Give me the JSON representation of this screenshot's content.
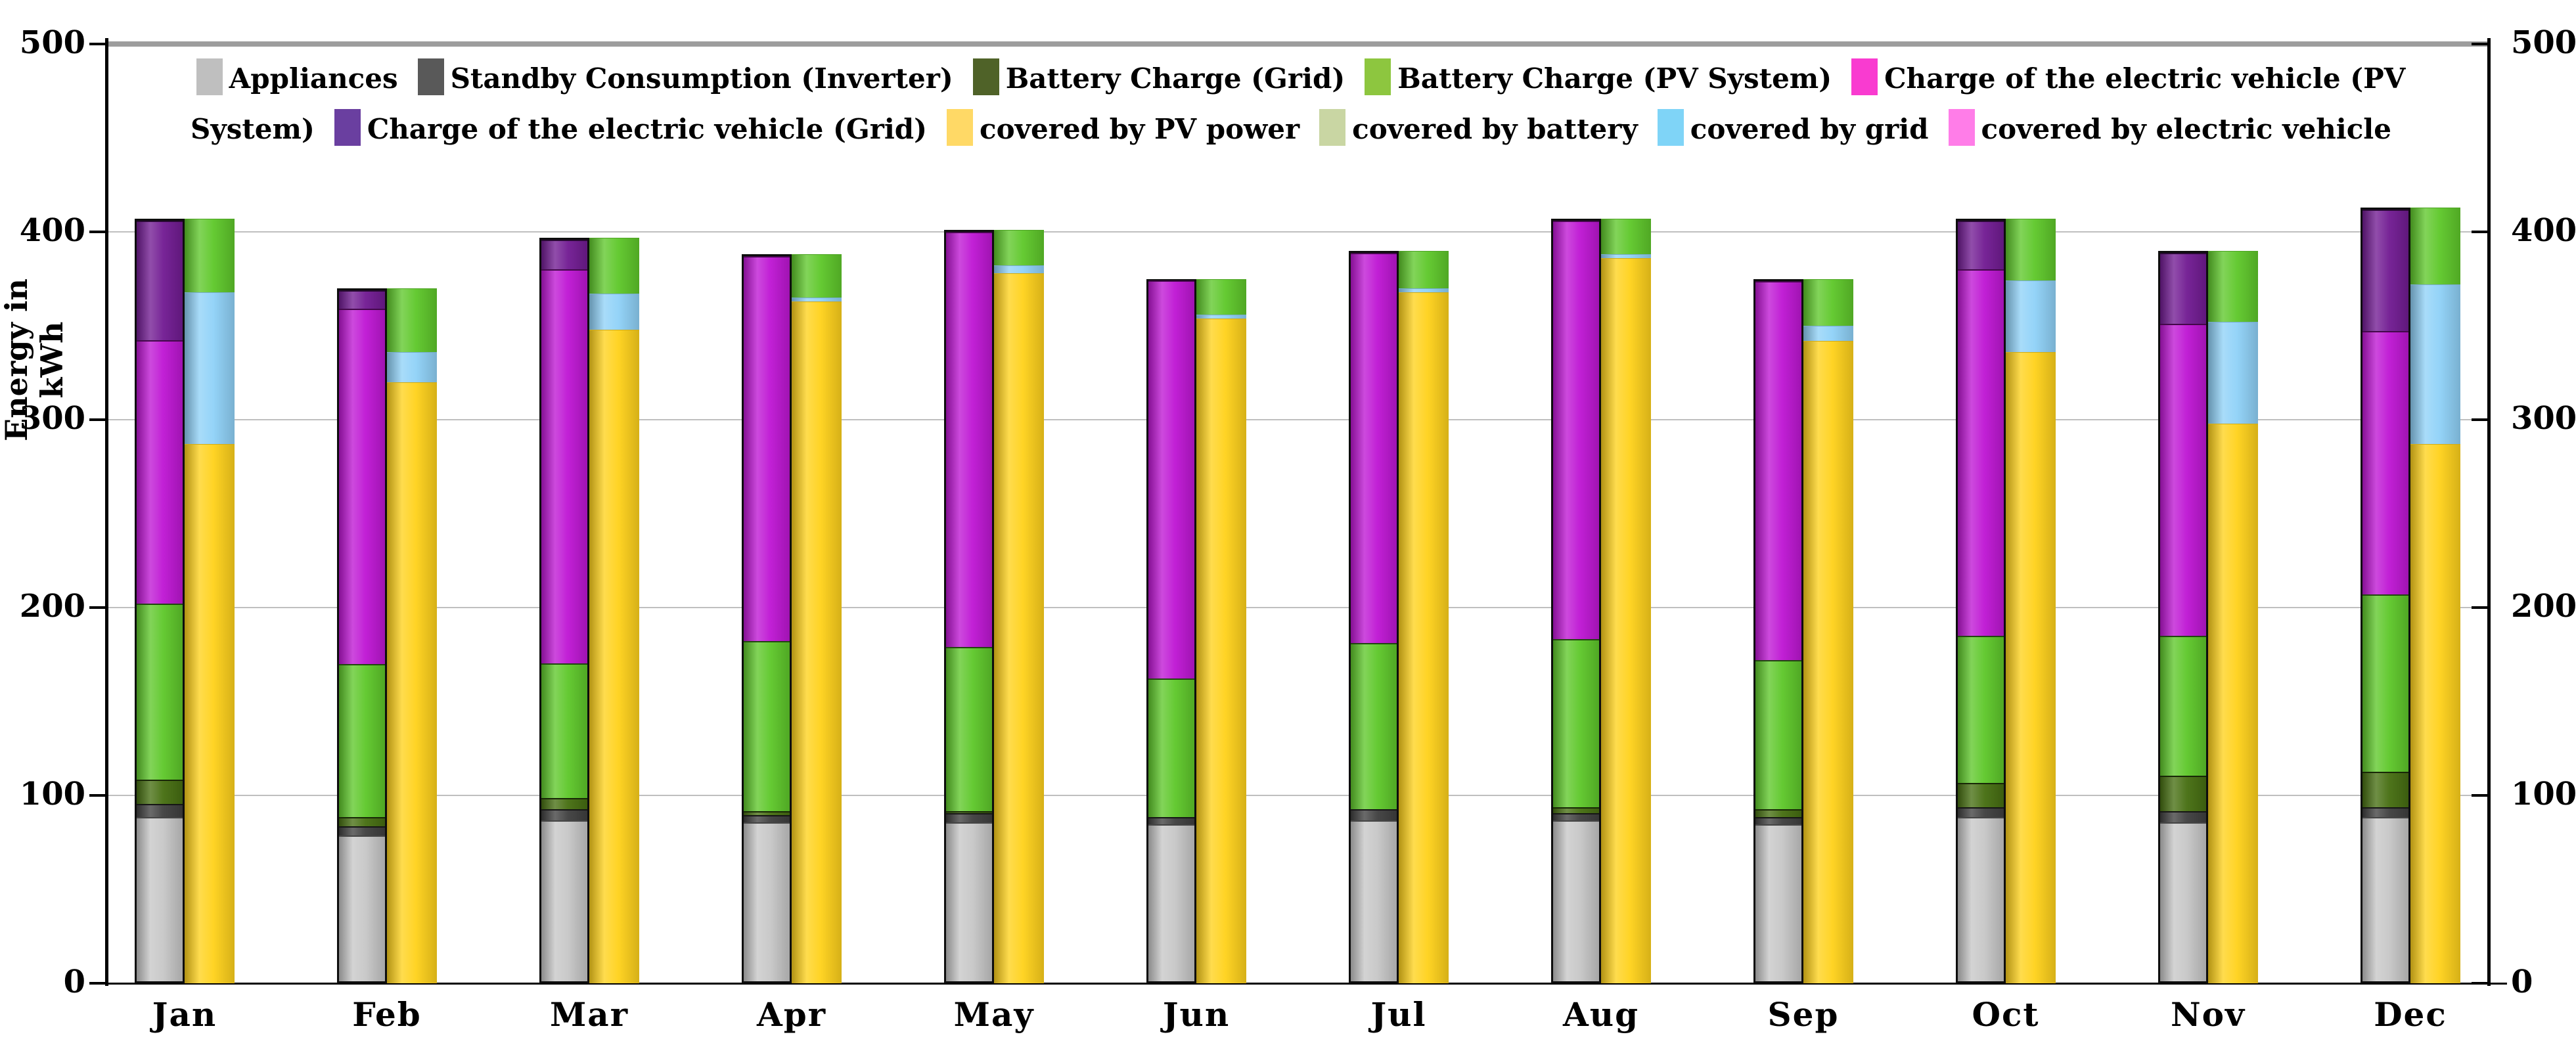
{
  "figure": {
    "background": "#ffffff",
    "y_axis_title_line1": "Energy in",
    "y_axis_title_line2": "kWh"
  },
  "legend": {
    "items": [
      {
        "label": "Appliances",
        "color": "#bfbfbf"
      },
      {
        "label": "Standby Consumption (Inverter)",
        "color": "#595959"
      },
      {
        "label": "Battery Charge (Grid)",
        "color": "#4f6228"
      },
      {
        "label": "Battery Charge (PV System)",
        "color": "#8dc63f"
      },
      {
        "label": "Charge of the electric vehicle (PV System)",
        "color": "#f93bd0"
      },
      {
        "label": "Charge of the electric vehicle (Grid)",
        "color": "#6a3fa0"
      },
      {
        "label": "covered by PV power",
        "color": "#ffd966"
      },
      {
        "label": "covered by battery",
        "color": "#c9d6a3"
      },
      {
        "label": "covered by grid",
        "color": "#7fd4f7"
      },
      {
        "label": "covered by electric vehicle",
        "color": "#ff7de8"
      }
    ]
  },
  "chart_data": {
    "type": "bar",
    "subtype": "clustered-stacked",
    "title": "",
    "xlabel": "",
    "ylabel": "Energy in kWh",
    "ylim": [
      0,
      500
    ],
    "y_ticks": [
      0,
      100,
      200,
      300,
      400,
      500
    ],
    "grid": true,
    "dual_y_axis": true,
    "legend_position": "top-center-inside",
    "categories": [
      "Jan",
      "Feb",
      "Mar",
      "Apr",
      "May",
      "Jun",
      "Jul",
      "Aug",
      "Sep",
      "Oct",
      "Nov",
      "Dec"
    ],
    "stacks": {
      "consumption": {
        "description": "left bar of each month pair",
        "series": [
          {
            "name": "Appliances",
            "color": "#c7c7c7",
            "values": [
              88,
              78,
              86,
              85,
              85,
              84,
              86,
              86,
              84,
              88,
              85,
              88
            ]
          },
          {
            "name": "Standby Consumption (Inverter)",
            "color": "#404040",
            "values": [
              7,
              5,
              6,
              4,
              5,
              4,
              6,
              4,
              4,
              5,
              6,
              5
            ]
          },
          {
            "name": "Battery Charge (Grid)",
            "color": "#476f12",
            "values": [
              13,
              5,
              6,
              2,
              1,
              0,
              0,
              3,
              4,
              13,
              19,
              19
            ]
          },
          {
            "name": "Battery Charge (PV System)",
            "color": "#5fc82b",
            "values": [
              94,
              82,
              72,
              91,
              88,
              74,
              89,
              90,
              80,
              79,
              75,
              95
            ]
          },
          {
            "name": "Charge of the electric vehicle (PV System)",
            "color": "#bf17d4",
            "values": [
              141,
              190,
              211,
              206,
              222,
              213,
              209,
              224,
              203,
              196,
              167,
              141
            ]
          },
          {
            "name": "Charge of the electric vehicle (Grid)",
            "color": "#721c93",
            "values": [
              64,
              10,
              16,
              0,
              0,
              0,
              0,
              0,
              0,
              26,
              38,
              65
            ]
          }
        ]
      },
      "coverage": {
        "description": "right bar of each month pair",
        "series": [
          {
            "name": "covered by PV power",
            "color": "#ffd21c",
            "values": [
              287,
              320,
              348,
              363,
              378,
              354,
              368,
              386,
              342,
              336,
              298,
              287
            ]
          },
          {
            "name": "covered by grid",
            "color": "#90d2f8",
            "values": [
              81,
              16,
              19,
              2,
              4,
              2,
              2,
              2,
              8,
              38,
              54,
              85
            ]
          },
          {
            "name": "covered by battery",
            "color": "#5fc82b",
            "values": [
              39,
              34,
              30,
              23,
              19,
              19,
              20,
              19,
              25,
              33,
              38,
              41
            ]
          },
          {
            "name": "covered by electric vehicle",
            "color": "#ff7de8",
            "values": [
              0,
              0,
              0,
              0,
              0,
              0,
              0,
              0,
              0,
              0,
              0,
              0
            ]
          }
        ]
      }
    }
  }
}
